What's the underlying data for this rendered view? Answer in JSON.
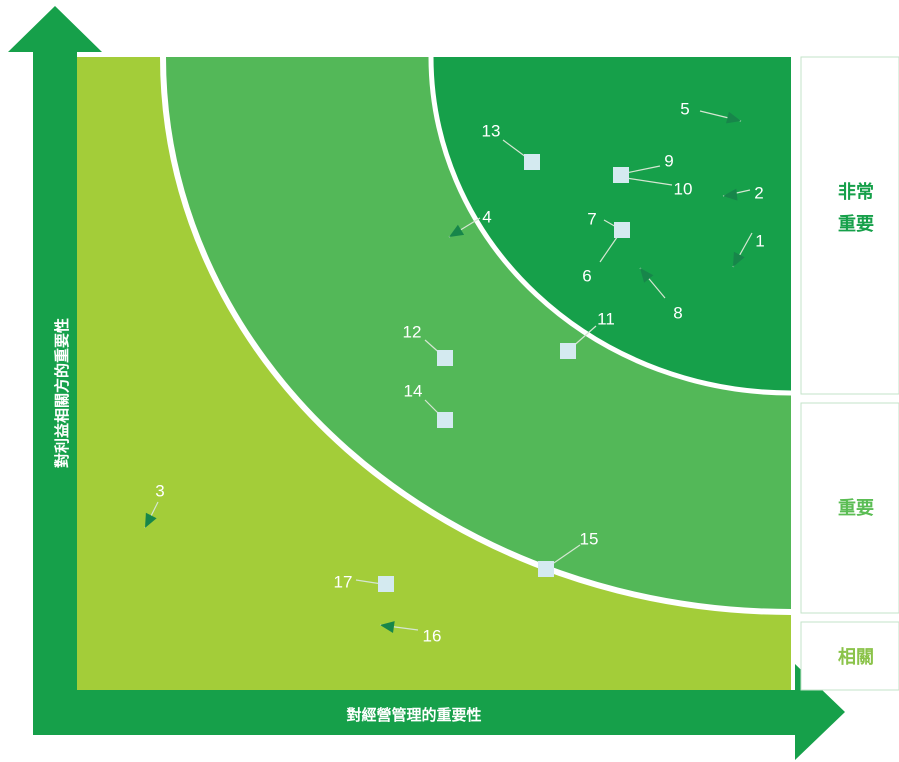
{
  "axes": {
    "x_label": "對經營管理的重要性",
    "y_label": "對利益相關方的重要性"
  },
  "tiers": [
    {
      "key": "very_important",
      "lines": [
        "非常",
        "重要"
      ],
      "color": "#16a04a"
    },
    {
      "key": "important",
      "lines": [
        "重要"
      ],
      "color": "#5bbd54"
    },
    {
      "key": "relevant",
      "lines": [
        "相關"
      ],
      "color": "#8bc34a"
    }
  ],
  "colors": {
    "axis_green": "#16a04a",
    "zone_relevant": "#a3cd39",
    "zone_important": "#53b858",
    "zone_very_important": "#16a04a",
    "marker_fill": "#d4eaf0",
    "arrow_marker": "#17864a"
  },
  "issues": [
    {
      "id": "1",
      "marker": "arrow",
      "tier": "very_important"
    },
    {
      "id": "2",
      "marker": "arrow",
      "tier": "very_important"
    },
    {
      "id": "3",
      "marker": "arrow",
      "tier": "relevant"
    },
    {
      "id": "4",
      "marker": "arrow",
      "tier": "important"
    },
    {
      "id": "5",
      "marker": "arrow",
      "tier": "very_important"
    },
    {
      "id": "6",
      "marker": "square",
      "tier": "very_important"
    },
    {
      "id": "7",
      "marker": "square",
      "tier": "very_important"
    },
    {
      "id": "8",
      "marker": "arrow",
      "tier": "very_important"
    },
    {
      "id": "9",
      "marker": "square",
      "tier": "very_important"
    },
    {
      "id": "10",
      "marker": "square",
      "tier": "very_important"
    },
    {
      "id": "11",
      "marker": "square",
      "tier": "important"
    },
    {
      "id": "12",
      "marker": "square",
      "tier": "important"
    },
    {
      "id": "13",
      "marker": "square",
      "tier": "very_important"
    },
    {
      "id": "14",
      "marker": "square",
      "tier": "important"
    },
    {
      "id": "15",
      "marker": "square",
      "tier": "important"
    },
    {
      "id": "16",
      "marker": "arrow",
      "tier": "relevant"
    },
    {
      "id": "17",
      "marker": "square",
      "tier": "relevant"
    }
  ]
}
